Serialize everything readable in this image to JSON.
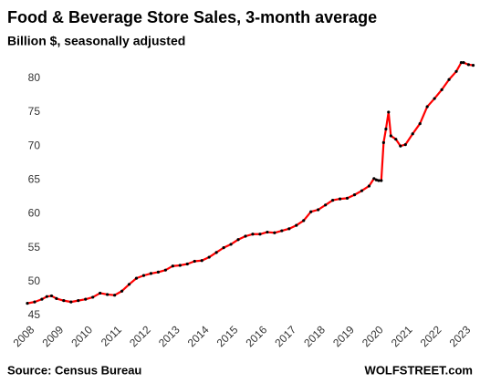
{
  "chart_data": {
    "type": "line",
    "title": "Food & Beverage Store Sales, 3-month average",
    "subtitle": "Billion $, seasonally adjusted",
    "source": "Source: Census Bureau",
    "credit": "WOLFSTREET.com",
    "color": "#ff0000",
    "marker_color": "#000000",
    "x": [
      2008.0,
      2008.25,
      2008.5,
      2008.67,
      2008.83,
      2009.0,
      2009.25,
      2009.5,
      2009.75,
      2010.0,
      2010.25,
      2010.5,
      2010.75,
      2011.0,
      2011.25,
      2011.5,
      2011.75,
      2012.0,
      2012.25,
      2012.5,
      2012.75,
      2013.0,
      2013.25,
      2013.5,
      2013.75,
      2014.0,
      2014.25,
      2014.5,
      2014.75,
      2015.0,
      2015.25,
      2015.5,
      2015.75,
      2016.0,
      2016.25,
      2016.5,
      2016.75,
      2017.0,
      2017.25,
      2017.5,
      2017.75,
      2018.0,
      2018.25,
      2018.5,
      2018.75,
      2019.0,
      2019.25,
      2019.5,
      2019.75,
      2019.92,
      2020.0,
      2020.08,
      2020.17,
      2020.25,
      2020.33,
      2020.42,
      2020.5,
      2020.67,
      2020.83,
      2021.0,
      2021.25,
      2021.5,
      2021.75,
      2022.0,
      2022.25,
      2022.5,
      2022.75,
      2022.92,
      2023.0,
      2023.17,
      2023.33
    ],
    "values": [
      46.8,
      47.0,
      47.4,
      47.8,
      47.9,
      47.5,
      47.2,
      47.0,
      47.2,
      47.4,
      47.7,
      48.3,
      48.1,
      48.0,
      48.6,
      49.6,
      50.5,
      50.9,
      51.2,
      51.4,
      51.7,
      52.3,
      52.4,
      52.6,
      53.0,
      53.1,
      53.6,
      54.3,
      55.0,
      55.5,
      56.2,
      56.7,
      57.0,
      57.0,
      57.3,
      57.2,
      57.5,
      57.8,
      58.3,
      59.0,
      60.3,
      60.6,
      61.3,
      62.0,
      62.2,
      62.3,
      62.8,
      63.4,
      64.1,
      65.2,
      65.0,
      64.9,
      64.9,
      70.5,
      72.5,
      75.0,
      71.5,
      71.0,
      70.0,
      70.2,
      71.8,
      73.3,
      75.8,
      77.0,
      78.3,
      79.8,
      81.0,
      82.3,
      82.3,
      82.0,
      81.9
    ],
    "xlim": [
      2008.0,
      2023.0
    ],
    "xticks": [
      2008,
      2009,
      2010,
      2011,
      2012,
      2013,
      2014,
      2015,
      2016,
      2017,
      2018,
      2019,
      2020,
      2021,
      2022,
      2023
    ],
    "ylim": [
      45,
      84
    ],
    "yticks": [
      45,
      50,
      55,
      60,
      65,
      70,
      75,
      80
    ],
    "grid": false
  }
}
